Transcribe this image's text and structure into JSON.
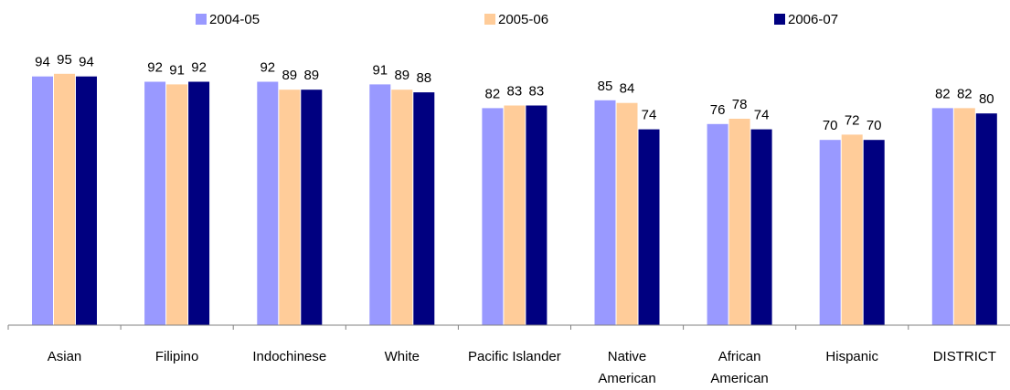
{
  "chart_data": {
    "type": "bar",
    "title": "",
    "xlabel": "",
    "ylabel": "",
    "ylim": [
      0,
      100
    ],
    "grid": false,
    "legend_position": "top",
    "categories": [
      [
        "Asian"
      ],
      [
        "Filipino"
      ],
      [
        "Indochinese"
      ],
      [
        "White"
      ],
      [
        "Pacific Islander"
      ],
      [
        "Native",
        "American"
      ],
      [
        "African",
        "American"
      ],
      [
        "Hispanic"
      ],
      [
        "DISTRICT"
      ]
    ],
    "series": [
      {
        "name": "2004-05",
        "color": "#9999ff",
        "values": [
          94,
          92,
          92,
          91,
          82,
          85,
          76,
          70,
          82
        ]
      },
      {
        "name": "2005-06",
        "color": "#ffcc99",
        "values": [
          95,
          91,
          89,
          89,
          83,
          84,
          78,
          72,
          82
        ]
      },
      {
        "name": "2006-07",
        "color": "#000080",
        "values": [
          94,
          92,
          89,
          88,
          83,
          74,
          74,
          70,
          80
        ]
      }
    ]
  }
}
